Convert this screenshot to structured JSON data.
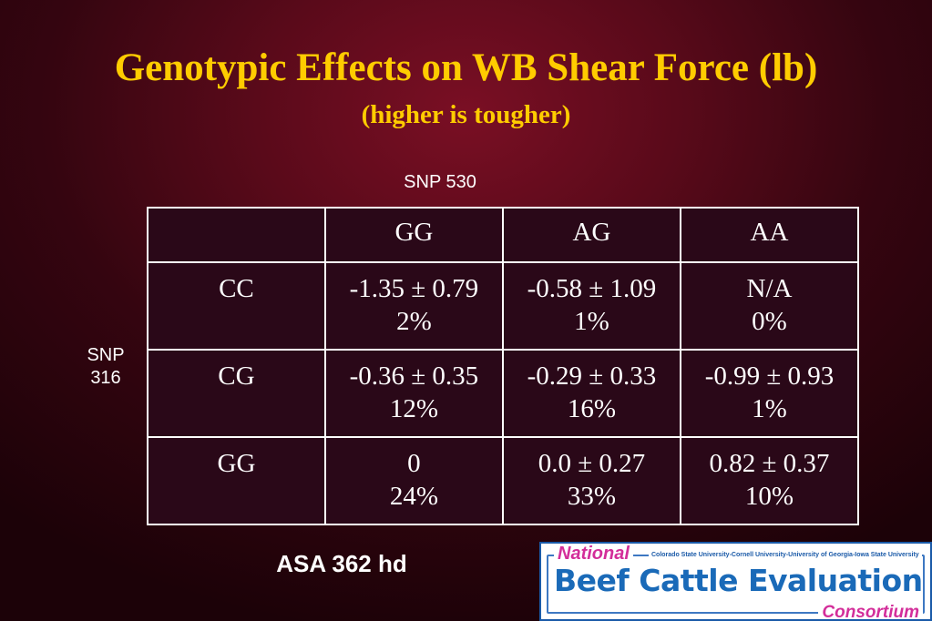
{
  "slide": {
    "title": "Genotypic Effects on WB Shear Force (lb)",
    "subtitle": "(higher is tougher)",
    "column_caption": "SNP 530",
    "row_caption_line1": "SNP",
    "row_caption_line2": "316",
    "footer_note": "ASA 362 hd"
  },
  "table": {
    "header": [
      "",
      "GG",
      "AG",
      "AA"
    ],
    "rows": [
      {
        "label": "CC",
        "cells": [
          {
            "value": "-1.35 ± 0.79",
            "pct": "2%"
          },
          {
            "value": "-0.58 ± 1.09",
            "pct": "1%"
          },
          {
            "value": "N/A",
            "pct": "0%"
          }
        ]
      },
      {
        "label": "CG",
        "cells": [
          {
            "value": "-0.36 ± 0.35",
            "pct": "12%"
          },
          {
            "value": "-0.29 ± 0.33",
            "pct": "16%"
          },
          {
            "value": "-0.99 ± 0.93",
            "pct": "1%"
          }
        ]
      },
      {
        "label": "GG",
        "cells": [
          {
            "value": "0",
            "pct": "24%"
          },
          {
            "value": "0.0 ± 0.27",
            "pct": "33%"
          },
          {
            "value": "0.82 ± 0.37",
            "pct": "10%"
          }
        ]
      }
    ]
  },
  "logo": {
    "national": "National",
    "universities": "Colorado State University-Cornell University-University of Georgia-Iowa State University",
    "main": "Beef Cattle Evaluation",
    "consortium": "Consortium"
  },
  "colors": {
    "title": "#ffcc00",
    "background_center": "#7a0f24",
    "background_edge": "#1c0208",
    "logo_blue": "#1a6ab8",
    "logo_pink": "#d32e9a"
  }
}
